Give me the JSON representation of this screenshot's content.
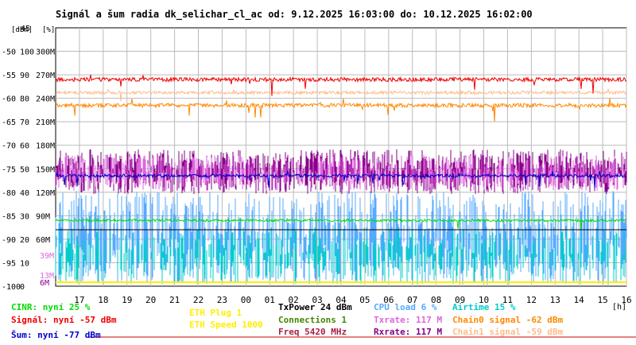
{
  "chart_data": {
    "type": "line",
    "title": "Signál a šum radia dk_selichar_cl_ac od: 9.12.2025 16:03:00 do: 10.12.2025 16:02:00",
    "axis_unit_labels": {
      "dbm": "[dBm]",
      "pct": "[%]",
      "hours": "[h]"
    },
    "y_dbm_ticks": [
      "-45",
      "-50",
      "-55",
      "-60",
      "-65",
      "-70",
      "-75",
      "-80",
      "-85",
      "-90",
      "-95",
      "-100"
    ],
    "y_pct_ticks": [
      "100",
      "90",
      "80",
      "70",
      "60",
      "50",
      "40",
      "30",
      "20",
      "10",
      "0"
    ],
    "y_rate_ticks": [
      "300M",
      "270M",
      "240M",
      "210M",
      "180M",
      "150M",
      "120M",
      "90M",
      "60M"
    ],
    "y_rate_small": {
      "a": "39M",
      "b": "13M",
      "c": "6M"
    },
    "x_ticks": [
      "17",
      "18",
      "19",
      "20",
      "21",
      "22",
      "23",
      "00",
      "01",
      "02",
      "03",
      "04",
      "05",
      "06",
      "07",
      "08",
      "09",
      "10",
      "11",
      "12",
      "13",
      "14",
      "15",
      "16"
    ],
    "ylim_dbm": [
      -100,
      -45
    ],
    "grid": true,
    "series": [
      {
        "name": "Signál",
        "color": "#ee0000",
        "approx_dbm": -56
      },
      {
        "name": "Chain0 signal",
        "color": "#ff8800",
        "approx_dbm": -62
      },
      {
        "name": "Chain1 signal",
        "color": "#ffbb88",
        "approx_dbm": -59
      },
      {
        "name": "Txrate",
        "color": "#dd66dd",
        "approx_mbps": 117
      },
      {
        "name": "Rxrate",
        "color": "#880088",
        "approx_mbps": 117
      },
      {
        "name": "CPU load",
        "color": "#55aaff",
        "approx_pct": 6
      },
      {
        "name": "Airtime",
        "color": "#00cccc",
        "approx_pct": 15
      },
      {
        "name": "CINR",
        "color": "#00dd00",
        "approx_pct": 25
      },
      {
        "name": "Šum",
        "color": "#0000cc",
        "approx_dbm": -77
      },
      {
        "name": "TxPower",
        "color": "#000000",
        "approx_dbm": 24
      },
      {
        "name": "ETH Plug",
        "color": "#ffee00"
      }
    ],
    "legend": [
      {
        "id": "cinr",
        "text": "CINR: nyní 25 %",
        "color": "#00dd00"
      },
      {
        "id": "signal",
        "text": "Signál: nyní -57 dBm",
        "color": "#ee0000"
      },
      {
        "id": "noise",
        "text": "Šum: nyní -77 dBm",
        "color": "#0000cc"
      },
      {
        "id": "eth-plug",
        "text": "ETH Plug 1",
        "color": "#ffee00"
      },
      {
        "id": "eth-speed",
        "text": "ETH Speed 1000",
        "color": "#ffee00"
      },
      {
        "id": "txpower",
        "text": "TxPower 24 dBm",
        "color": "#000000"
      },
      {
        "id": "connections",
        "text": "Connections 1",
        "color": "#448800"
      },
      {
        "id": "freq",
        "text": "Freq 5420 MHz",
        "color": "#aa2244"
      },
      {
        "id": "cpu",
        "text": "CPU load 6 %",
        "color": "#55aaff"
      },
      {
        "id": "txrate",
        "text": "Txrate: 117 M",
        "color": "#dd66dd"
      },
      {
        "id": "rxrate",
        "text": "Rxrate: 117 M",
        "color": "#880088"
      },
      {
        "id": "airtime",
        "text": "Airtime 15 %",
        "color": "#00cccc"
      },
      {
        "id": "chain0",
        "text": "Chain0 signal -62 dBm",
        "color": "#ff8800"
      },
      {
        "id": "chain1",
        "text": "Chain1 signal -59 dBm",
        "color": "#ffbb88"
      }
    ]
  }
}
